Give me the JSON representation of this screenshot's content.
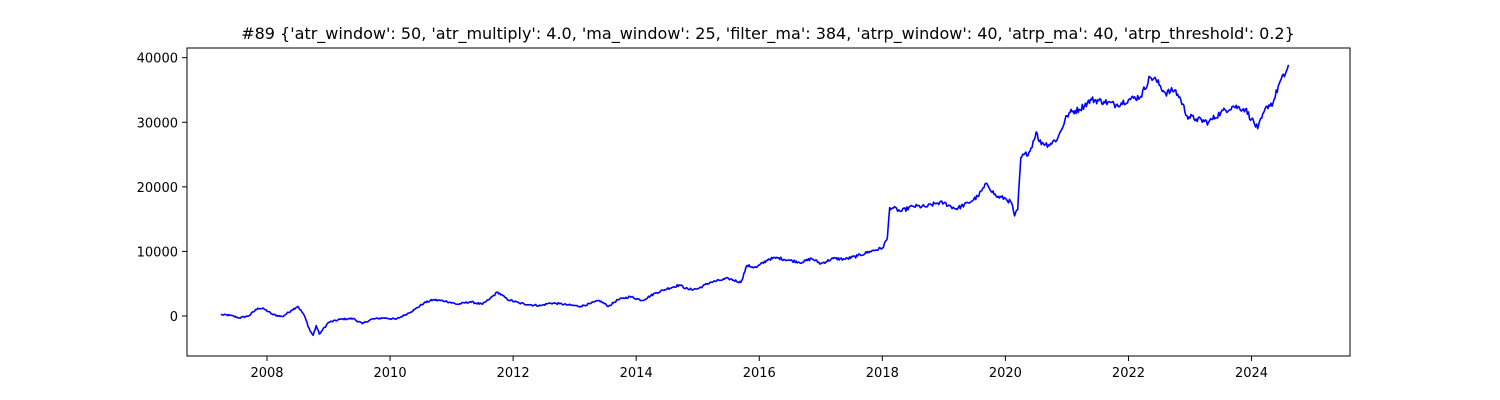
{
  "chart_data": {
    "type": "line",
    "title": "#89 {'atr_window': 50, 'atr_multiply': 4.0, 'ma_window': 25, 'filter_ma': 384, 'atrp_window': 40, 'atrp_ma': 40, 'atrp_threshold': 0.2}",
    "xlabel": "",
    "ylabel": "",
    "xlim": [
      2006.7,
      2025.6
    ],
    "ylim": [
      -6200,
      41500
    ],
    "grid": false,
    "x_ticks": [
      2008,
      2010,
      2012,
      2014,
      2016,
      2018,
      2020,
      2022,
      2024
    ],
    "x_tick_labels": [
      "2008",
      "2010",
      "2012",
      "2014",
      "2016",
      "2018",
      "2020",
      "2022",
      "2024"
    ],
    "y_ticks": [
      0,
      10000,
      20000,
      30000,
      40000
    ],
    "y_tick_labels": [
      "0",
      "10000",
      "20000",
      "30000",
      "40000"
    ],
    "series": [
      {
        "color": "#0000ff",
        "x": [
          2007.25,
          2007.4,
          2007.55,
          2007.7,
          2007.85,
          2007.95,
          2008.1,
          2008.25,
          2008.4,
          2008.5,
          2008.6,
          2008.7,
          2008.75,
          2008.8,
          2008.85,
          2008.9,
          2009.0,
          2009.2,
          2009.4,
          2009.55,
          2009.7,
          2009.9,
          2010.1,
          2010.25,
          2010.4,
          2010.55,
          2010.7,
          2010.9,
          2011.1,
          2011.3,
          2011.5,
          2011.6,
          2011.75,
          2011.9,
          2012.1,
          2012.3,
          2012.45,
          2012.6,
          2012.75,
          2012.9,
          2013.1,
          2013.25,
          2013.4,
          2013.55,
          2013.7,
          2013.9,
          2014.1,
          2014.3,
          2014.5,
          2014.7,
          2014.85,
          2015.0,
          2015.2,
          2015.35,
          2015.5,
          2015.7,
          2015.8,
          2015.95,
          2016.15,
          2016.3,
          2016.5,
          2016.7,
          2016.85,
          2017.0,
          2017.2,
          2017.4,
          2017.6,
          2017.8,
          2018.0,
          2018.08,
          2018.12,
          2018.18,
          2018.3,
          2018.5,
          2018.7,
          2018.9,
          2019.0,
          2019.2,
          2019.4,
          2019.55,
          2019.7,
          2019.85,
          2020.0,
          2020.1,
          2020.15,
          2020.2,
          2020.25,
          2020.4,
          2020.5,
          2020.55,
          2020.7,
          2020.85,
          2021.0,
          2021.05,
          2021.2,
          2021.4,
          2021.6,
          2021.8,
          2022.0,
          2022.2,
          2022.35,
          2022.45,
          2022.6,
          2022.75,
          2022.85,
          2022.95,
          2023.1,
          2023.3,
          2023.5,
          2023.7,
          2023.9,
          2024.0,
          2024.1,
          2024.25,
          2024.35,
          2024.45,
          2024.55,
          2024.6
        ],
        "y": [
          200,
          100,
          -300,
          0,
          1200,
          1100,
          200,
          -100,
          900,
          1500,
          200,
          -2300,
          -3000,
          -1500,
          -2800,
          -2200,
          -1000,
          -500,
          -400,
          -1200,
          -500,
          -300,
          -500,
          200,
          1000,
          2000,
          2500,
          2300,
          1800,
          2200,
          1800,
          2500,
          3700,
          2600,
          2000,
          1700,
          1600,
          2000,
          1900,
          1700,
          1500,
          1900,
          2400,
          1500,
          2500,
          3000,
          2400,
          3500,
          4200,
          4800,
          4100,
          4200,
          5200,
          5500,
          5800,
          5200,
          7800,
          7500,
          8800,
          9000,
          8600,
          8300,
          8900,
          8100,
          8900,
          8800,
          9300,
          10000,
          10500,
          12000,
          16800,
          16700,
          16200,
          17000,
          16900,
          17500,
          17500,
          16600,
          17500,
          18500,
          20500,
          18500,
          18200,
          17500,
          15500,
          16500,
          24500,
          25500,
          28500,
          27000,
          26500,
          27500,
          31000,
          31500,
          32000,
          33500,
          33200,
          32700,
          33500,
          34000,
          37000,
          36500,
          34500,
          35000,
          33500,
          31000,
          30500,
          30000,
          31500,
          32500,
          32000,
          30500,
          29000,
          32500,
          33000,
          36000,
          37500,
          38900
        ]
      }
    ]
  }
}
